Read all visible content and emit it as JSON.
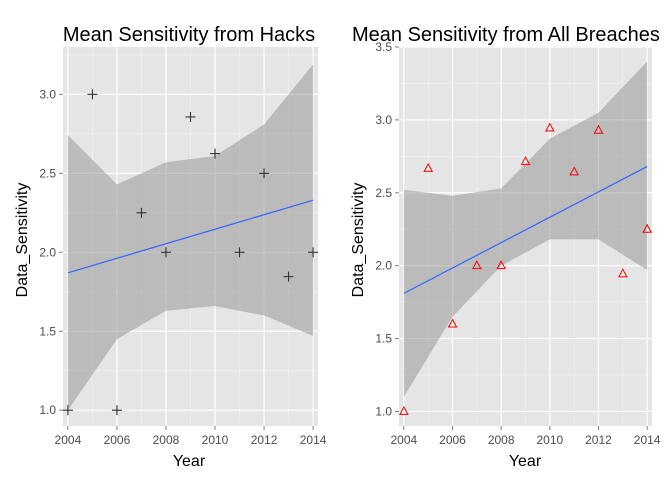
{
  "chart_data": [
    {
      "type": "scatter",
      "title": "Mean Sensitivity from Hacks",
      "xlabel": "Year",
      "ylabel": "Data_Sensitivity",
      "xlim": [
        2003.8,
        2014.2
      ],
      "ylim": [
        0.9,
        3.3
      ],
      "xticks": [
        "2004",
        "2006",
        "2008",
        "2010",
        "2012",
        "2014"
      ],
      "yticks": [
        "1.0",
        "1.5",
        "2.0",
        "2.5",
        "3.0"
      ],
      "marker": "plus",
      "marker_color": "#333333",
      "points": [
        {
          "x": 2004,
          "y": 1.0
        },
        {
          "x": 2005,
          "y": 3.0
        },
        {
          "x": 2006,
          "y": 1.0
        },
        {
          "x": 2007,
          "y": 2.25
        },
        {
          "x": 2008,
          "y": 2.0
        },
        {
          "x": 2009,
          "y": 2.857
        },
        {
          "x": 2010,
          "y": 2.625
        },
        {
          "x": 2011,
          "y": 2.0
        },
        {
          "x": 2012,
          "y": 2.5
        },
        {
          "x": 2013,
          "y": 1.846
        },
        {
          "x": 2014,
          "y": 2.0
        }
      ],
      "fit_line": {
        "x": [
          2004,
          2014
        ],
        "y": [
          1.87,
          2.33
        ],
        "color": "#3366ff"
      },
      "confidence_band": {
        "x": [
          2004,
          2006,
          2008,
          2010,
          2012,
          2014
        ],
        "lower": [
          1.0,
          1.45,
          1.63,
          1.66,
          1.6,
          1.47
        ],
        "upper": [
          2.74,
          2.43,
          2.57,
          2.61,
          2.81,
          3.19
        ]
      },
      "grid": true
    },
    {
      "type": "scatter",
      "title": "Mean Sensitivity from All Breaches",
      "xlabel": "Year",
      "ylabel": "Data_Sensitivity",
      "xlim": [
        2003.8,
        2014.2
      ],
      "ylim": [
        0.9,
        3.5
      ],
      "xticks": [
        "2004",
        "2006",
        "2008",
        "2010",
        "2012",
        "2014"
      ],
      "yticks": [
        "1.0",
        "1.5",
        "2.0",
        "2.5",
        "3.0",
        "3.5"
      ],
      "marker": "triangle",
      "marker_color": "#ff0000",
      "points": [
        {
          "x": 2004,
          "y": 1.0
        },
        {
          "x": 2005,
          "y": 2.667
        },
        {
          "x": 2006,
          "y": 1.6
        },
        {
          "x": 2007,
          "y": 2.0
        },
        {
          "x": 2008,
          "y": 2.0
        },
        {
          "x": 2009,
          "y": 2.714
        },
        {
          "x": 2010,
          "y": 2.944
        },
        {
          "x": 2011,
          "y": 2.643
        },
        {
          "x": 2012,
          "y": 2.929
        },
        {
          "x": 2013,
          "y": 1.944
        },
        {
          "x": 2014,
          "y": 2.25
        }
      ],
      "fit_line": {
        "x": [
          2004,
          2014
        ],
        "y": [
          1.81,
          2.68
        ],
        "color": "#3366ff"
      },
      "confidence_band": {
        "x": [
          2004,
          2006,
          2008,
          2010,
          2012,
          2014
        ],
        "lower": [
          1.1,
          1.65,
          2.0,
          2.18,
          2.18,
          1.97
        ],
        "upper": [
          2.52,
          2.48,
          2.53,
          2.87,
          3.05,
          3.4
        ]
      },
      "grid": true
    }
  ]
}
